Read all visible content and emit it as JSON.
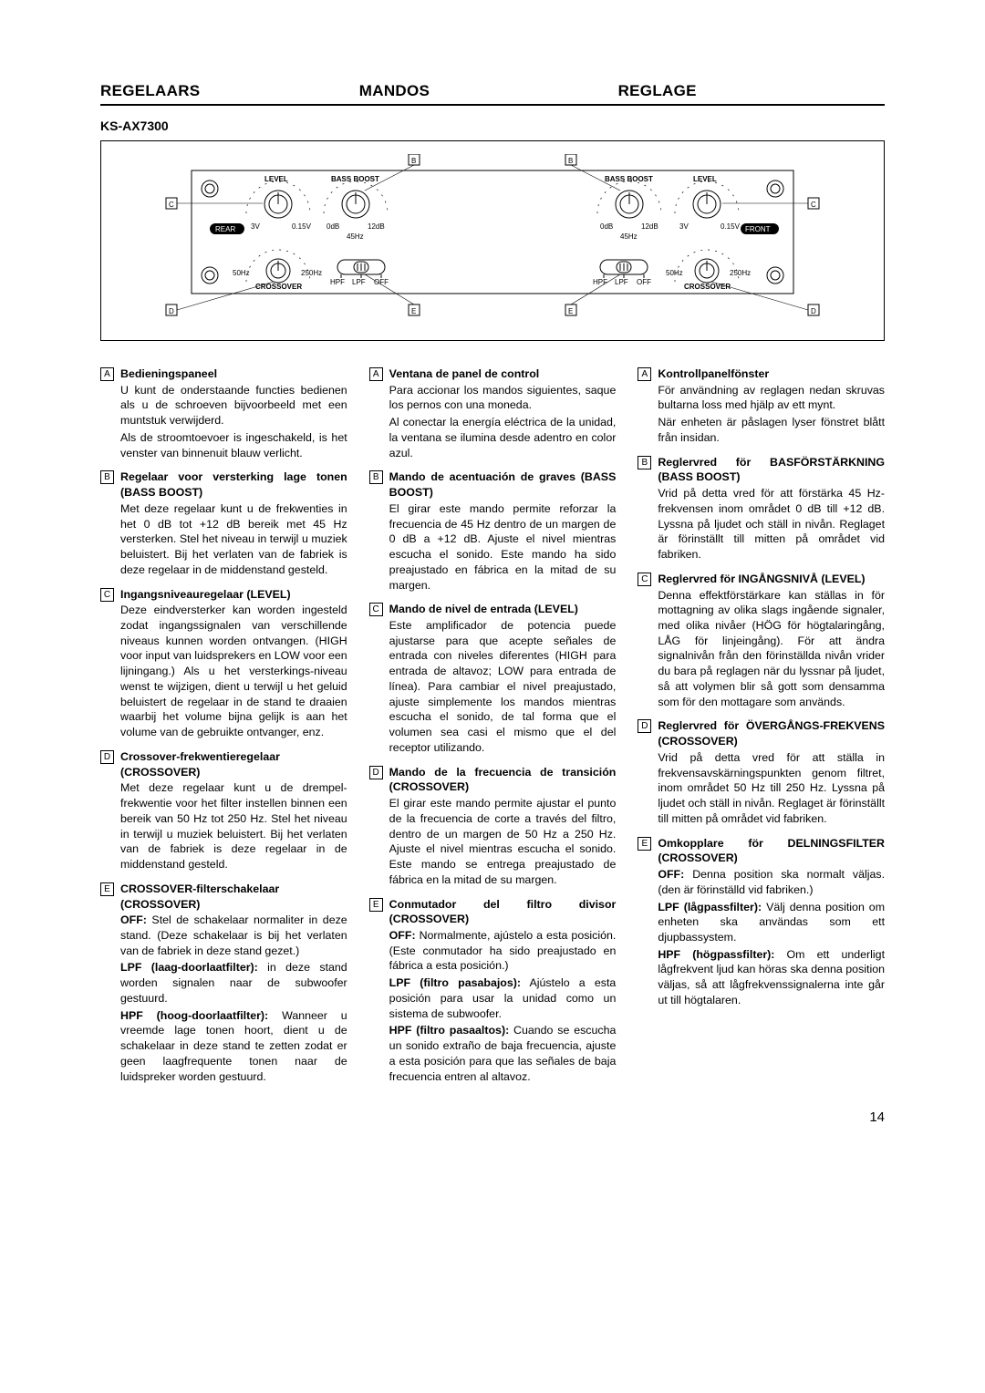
{
  "headings": {
    "h1": "REGELAARS",
    "h2": "MANDOS",
    "h3": "REGLAGE"
  },
  "model": "KS-AX7300",
  "diagram": {
    "tags": {
      "A": "A",
      "B": "B",
      "C": "C",
      "D": "D",
      "E": "E"
    },
    "labels": {
      "level": "LEVEL",
      "bassBoost": "BASS BOOST",
      "rear": "REAR",
      "front": "FRONT",
      "crossover": "CROSSOVER",
      "v3": "3V",
      "v015": "0.15V",
      "db0": "0dB",
      "db12": "12dB",
      "hz45": "45Hz",
      "hz50": "50Hz",
      "hz250": "250Hz",
      "hpf": "HPF",
      "lpf": "LPF",
      "off": "OFF"
    }
  },
  "cols": [
    [
      {
        "tag": "A",
        "title": "Bedieningspaneel",
        "body": "<p>U kunt de onderstaande functies bedienen als u de schroeven bijvoorbeeld met een muntstuk verwijderd.</p><p>Als de stroomtoevoer is ingeschakeld, is het venster van binnenuit blauw verlicht.</p>"
      },
      {
        "tag": "B",
        "title": "Regelaar voor versterking lage tonen (BASS BOOST)",
        "body": "<p>Met deze regelaar kunt u de frekwenties in het 0 dB tot +12 dB bereik met 45 Hz versterken. Stel het niveau in terwijl u muziek beluistert. Bij het verlaten van de fabriek is deze regelaar in de middenstand gesteld.</p>"
      },
      {
        "tag": "C",
        "title": "Ingangsniveauregelaar (LEVEL)",
        "body": "<p>Deze eindversterker kan worden ingesteld zodat ingangssignalen van verschillende niveaus kunnen worden ontvangen. (HIGH voor input van luidsprekers en LOW voor een lijningang.) Als u het versterkings-niveau wenst te wijzigen, dient u terwijl u het geluid beluistert de regelaar in de stand te draaien waarbij het volume bijna gelijk is aan het volume van de gebruikte ontvanger, enz.</p>"
      },
      {
        "tag": "D",
        "title": "Crossover-frekwentieregelaar (CROSSOVER)",
        "body": "<p>Met deze regelaar kunt u de drempel-frekwentie voor het filter instellen binnen een bereik van 50 Hz tot 250 Hz. Stel het niveau in terwijl u muziek beluistert. Bij het verlaten van de fabriek is deze regelaar in de middenstand gesteld.</p>"
      },
      {
        "tag": "E",
        "title": "CROSSOVER-filterschakelaar (CROSSOVER)",
        "body": "<p><strong>OFF:</strong> Stel de schakelaar normaliter in deze stand. (Deze schakelaar is bij het verlaten van de fabriek in deze stand gezet.)</p><p><strong>LPF (laag-doorlaatfilter):</strong> in deze stand worden signalen naar de subwoofer gestuurd.</p><p><strong>HPF (hoog-doorlaatfilter):</strong> Wanneer u vreemde lage tonen hoort, dient u de schakelaar in deze stand te zetten zodat er geen laagfrequente tonen naar de luidspreker worden gestuurd.</p>"
      }
    ],
    [
      {
        "tag": "A",
        "title": "Ventana de panel de control",
        "body": "<p>Para accionar los mandos siguientes, saque los pernos con una moneda.</p><p>Al conectar la energía eléctrica de la unidad, la ventana se ilumina desde adentro en color azul.</p>"
      },
      {
        "tag": "B",
        "title": "Mando de acentuación de graves (BASS BOOST)",
        "body": "<p>El girar este mando permite reforzar la frecuencia de 45 Hz dentro de un margen de 0 dB a +12 dB. Ajuste el nivel mientras escucha el sonido. Este mando ha sido preajustado en fábrica en la mitad de su margen.</p>"
      },
      {
        "tag": "C",
        "title": "Mando de nivel de entrada (LEVEL)",
        "body": "<p>Este amplificador de potencia puede ajustarse para que acepte señales de entrada con niveles diferentes (HIGH para entrada de altavoz; LOW para entrada de línea). Para cambiar el nivel preajustado, ajuste simplemente los mandos mientras escucha el sonido, de tal forma que el volumen sea casi el mismo que el del receptor utilizando.</p>"
      },
      {
        "tag": "D",
        "title": "Mando de la frecuencia de transición (CROSSOVER)",
        "body": "<p>El girar este mando permite ajustar el punto de la frecuencia de corte a través del filtro, dentro de un margen de 50 Hz a 250 Hz. Ajuste el nivel mientras escucha el sonido. Este mando se entrega preajustado de fábrica en la mitad de su margen.</p>"
      },
      {
        "tag": "E",
        "title": "Conmutador del filtro divisor (CROSSOVER)",
        "body": "<p><strong>OFF:</strong> Normalmente, ajústelo a esta posición. (Este conmutador ha sido preajustado en fábrica a esta posición.)</p><p><strong>LPF (filtro pasabajos):</strong> Ajústelo a esta posición para usar la unidad como un sistema de subwoofer.</p><p><strong>HPF (filtro pasaaltos):</strong> Cuando se escucha un sonido extraño de baja frecuencia, ajuste a esta posición para que las señales de baja frecuencia entren al altavoz.</p>"
      }
    ],
    [
      {
        "tag": "A",
        "title": "Kontrollpanelfönster",
        "body": "<p>För användning av reglagen nedan skruvas bultarna loss med hjälp av ett mynt.</p><p>När enheten är påslagen lyser fönstret blått från insidan.</p>"
      },
      {
        "tag": "B",
        "title": "Reglervred för BASFÖRSTÄRKNING (BASS BOOST)",
        "body": "<p>Vrid på detta vred för att förstärka 45 Hz-frekvensen inom området 0 dB till +12 dB. Lyssna på ljudet och ställ in nivån. Reglaget är förinställt till mitten på området vid fabriken.</p>"
      },
      {
        "tag": "C",
        "title": "Reglervred för INGÅNGSNIVÅ (LEVEL)",
        "body": "<p>Denna effektförstärkare kan ställas in för mottagning av olika slags ingående signaler, med olika nivåer (HÖG för högtalaringång, LÅG för linjeingång). För att ändra signalnivån från den förinställda nivån vrider du bara på reglagen när du lyssnar på ljudet, så att volymen blir så gott som densamma som för den mottagare som används.</p>"
      },
      {
        "tag": "D",
        "title": "Reglervred för ÖVERGÅNGS-FREKVENS (CROSSOVER)",
        "body": "<p>Vrid på detta vred för att ställa in frekvensavskärningspunkten genom filtret, inom området 50 Hz till 250 Hz. Lyssna på ljudet och ställ in nivån. Reglaget är förinställt till mitten på området vid fabriken.</p>"
      },
      {
        "tag": "E",
        "title": "Omkopplare för DELNINGSFILTER (CROSSOVER)",
        "body": "<p><strong>OFF:</strong> Denna position ska normalt väljas. (den är förinställd vid fabriken.)</p><p><strong>LPF (lågpassfilter):</strong> Välj denna position om enheten ska användas som ett djupbassystem.</p><p><strong>HPF (högpassfilter):</strong> Om ett underligt lågfrekvent ljud kan höras ska denna position väljas, så att lågfrekvenssignalerna inte går ut till högtalaren.</p>"
      }
    ]
  ],
  "pageNumber": "14"
}
